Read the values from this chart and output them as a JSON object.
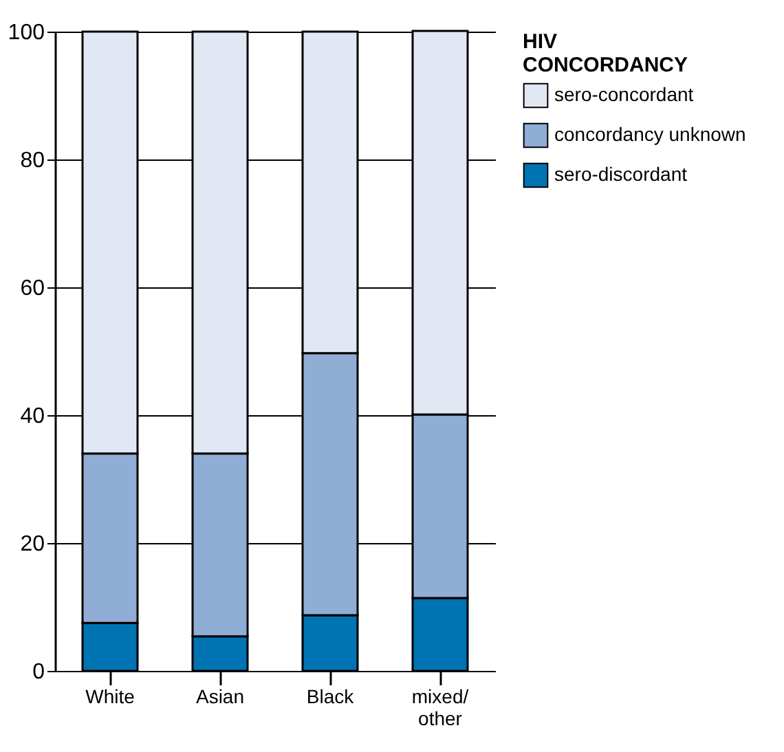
{
  "chart_data": {
    "type": "bar",
    "stacked": true,
    "categories": [
      "White",
      "Asian",
      "Black",
      "mixed/ other"
    ],
    "series": [
      {
        "name": "sero-discordant",
        "color": "#0073b3",
        "values": [
          7.5,
          5.4,
          8.7,
          11.4
        ]
      },
      {
        "name": "concordancy unknown",
        "color": "#8fadd5",
        "values": [
          26.5,
          28.6,
          41,
          28.7
        ]
      },
      {
        "name": "sero-concordant",
        "color": "#e1e8f3",
        "values": [
          66,
          66,
          50.3,
          60
        ]
      }
    ],
    "legend_title": "HIV CONCORDANCY",
    "legend": "right",
    "ylim": [
      0,
      100
    ],
    "yticks": [
      0,
      20,
      40,
      60,
      80,
      100
    ],
    "grid": "y"
  }
}
